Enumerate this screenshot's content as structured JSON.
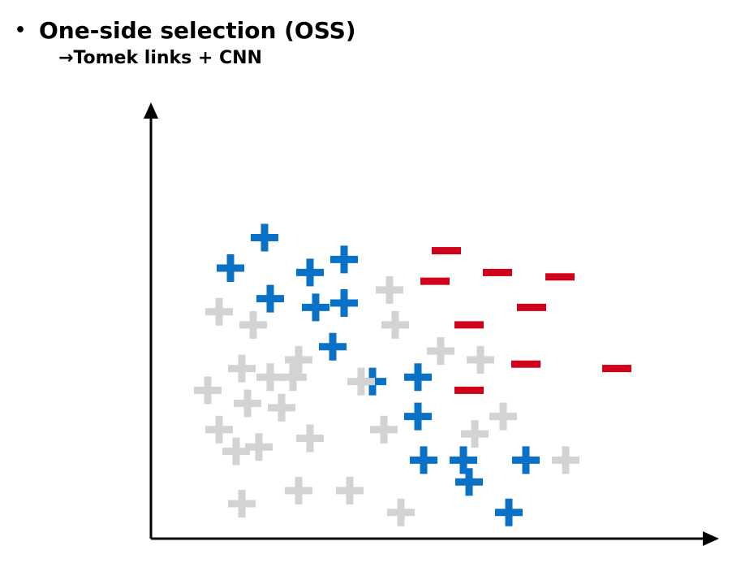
{
  "heading": {
    "bullet": "•",
    "title": "One-side selection (OSS)",
    "subtitle_arrow": "→",
    "subtitle": "Tomek links + CNN"
  },
  "colors": {
    "positive_kept": "#0a72c6",
    "positive_removed": "#d3d3d3",
    "negative": "#d0021b",
    "axis": "#000000"
  },
  "chart_data": {
    "type": "scatter",
    "title": "",
    "xlabel": "",
    "ylabel": "",
    "xlim": [
      0,
      100
    ],
    "ylim": [
      0,
      100
    ],
    "grid": false,
    "series": [
      {
        "marker": "plus",
        "color": "#0a72c6",
        "points": [
          [
            20,
            69
          ],
          [
            14,
            62
          ],
          [
            28,
            61
          ],
          [
            34,
            64
          ],
          [
            21,
            55
          ],
          [
            29,
            53
          ],
          [
            34,
            54
          ],
          [
            32,
            44
          ],
          [
            39,
            36
          ],
          [
            47,
            37
          ],
          [
            47,
            28
          ],
          [
            48,
            18
          ],
          [
            55,
            18
          ],
          [
            66,
            18
          ],
          [
            56,
            13
          ],
          [
            63,
            6
          ]
        ]
      },
      {
        "marker": "plus",
        "color": "#d3d3d3",
        "points": [
          [
            12,
            52
          ],
          [
            18,
            49
          ],
          [
            42,
            57
          ],
          [
            43,
            49
          ],
          [
            26,
            41
          ],
          [
            16,
            39
          ],
          [
            21,
            37
          ],
          [
            25,
            37
          ],
          [
            10,
            34
          ],
          [
            17,
            31
          ],
          [
            23,
            30
          ],
          [
            12,
            25
          ],
          [
            15,
            20
          ],
          [
            19,
            21
          ],
          [
            28,
            23
          ],
          [
            37,
            36
          ],
          [
            41,
            25
          ],
          [
            51,
            43
          ],
          [
            58,
            41
          ],
          [
            62,
            28
          ],
          [
            57,
            24
          ],
          [
            73,
            18
          ],
          [
            26,
            11
          ],
          [
            35,
            11
          ],
          [
            16,
            8
          ],
          [
            44,
            6
          ]
        ]
      },
      {
        "marker": "minus",
        "color": "#d0021b",
        "points": [
          [
            52,
            66
          ],
          [
            61,
            61
          ],
          [
            72,
            60
          ],
          [
            50,
            59
          ],
          [
            67,
            53
          ],
          [
            56,
            49
          ],
          [
            66,
            40
          ],
          [
            82,
            39
          ],
          [
            56,
            34
          ]
        ]
      }
    ]
  }
}
